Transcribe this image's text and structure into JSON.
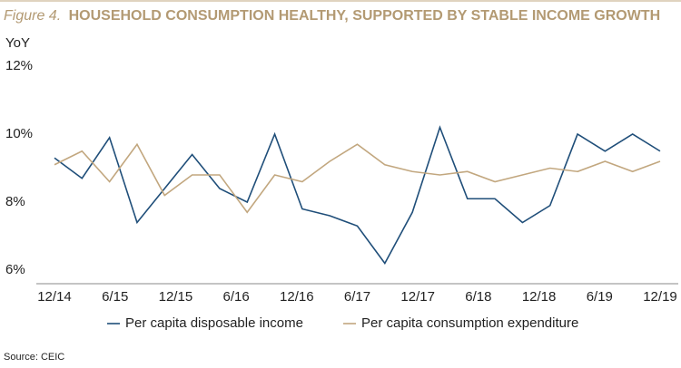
{
  "chart_data": {
    "type": "line",
    "figure_label": "Figure 4.",
    "title": "HOUSEHOLD CONSUMPTION HEALTHY, SUPPORTED BY STABLE INCOME GROWTH",
    "y_label": "YoY",
    "source": "Source: CEIC",
    "x": [
      0,
      1,
      2,
      3,
      4,
      5,
      6,
      7,
      8,
      9,
      10,
      11,
      12,
      13,
      14,
      15,
      16,
      17,
      18,
      19,
      20,
      21,
      22
    ],
    "xlim": [
      0,
      22
    ],
    "xticks": [
      {
        "value": 0,
        "label": "12/14"
      },
      {
        "value": 2.2,
        "label": "6/15"
      },
      {
        "value": 4.4,
        "label": "12/15"
      },
      {
        "value": 6.6,
        "label": "6/16"
      },
      {
        "value": 8.8,
        "label": "12/16"
      },
      {
        "value": 11,
        "label": "6/17"
      },
      {
        "value": 13.2,
        "label": "12/17"
      },
      {
        "value": 15.4,
        "label": "6/18"
      },
      {
        "value": 17.6,
        "label": "12/18"
      },
      {
        "value": 19.8,
        "label": "6/19"
      },
      {
        "value": 22,
        "label": "12/19"
      }
    ],
    "ylim": [
      5.6,
      12
    ],
    "yticks": [
      {
        "value": 6,
        "label": "6%"
      },
      {
        "value": 8,
        "label": "8%"
      },
      {
        "value": 10,
        "label": "10%"
      },
      {
        "value": 12,
        "label": "12%"
      }
    ],
    "legend": "bottom",
    "series": [
      {
        "name": "Per capita disposable income",
        "color": "#1f4e79",
        "values": [
          9.3,
          8.7,
          9.9,
          7.4,
          8.4,
          9.4,
          8.4,
          8.0,
          10.0,
          7.8,
          7.6,
          7.3,
          6.2,
          7.7,
          10.2,
          8.1,
          8.1,
          7.4,
          7.9,
          10.0,
          9.5,
          10.0,
          9.5
        ]
      },
      {
        "name": "Per capita consumption expenditure",
        "color": "#c2a77f",
        "values": [
          9.1,
          9.5,
          8.6,
          9.7,
          8.2,
          8.8,
          8.8,
          7.7,
          8.8,
          8.6,
          9.2,
          9.7,
          9.1,
          8.9,
          8.8,
          8.9,
          8.6,
          8.8,
          9.0,
          8.9,
          9.2,
          8.9,
          9.2
        ]
      }
    ]
  }
}
